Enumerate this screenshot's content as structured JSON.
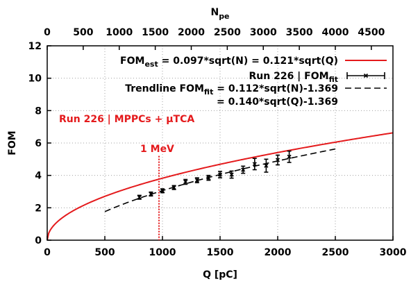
{
  "chart_data": {
    "type": "line",
    "x_label": "Q [pC]",
    "x2_label": "N",
    "x2_label_sub": "pe",
    "y_label": "FOM",
    "x_range": [
      0,
      3000
    ],
    "x2_range": [
      0,
      4800
    ],
    "y_range": [
      0,
      12
    ],
    "x_ticks": [
      0,
      500,
      1000,
      1500,
      2000,
      2500,
      3000
    ],
    "x2_ticks": [
      0,
      500,
      1000,
      1500,
      2000,
      2500,
      3000,
      3500,
      4000,
      4500
    ],
    "y_ticks": [
      0,
      2,
      4,
      6,
      8,
      10,
      12
    ],
    "grid": true,
    "legend_position": "top-right",
    "colors": {
      "est": "#e41a1c",
      "annotation": "#e41a1c",
      "data": "#000000",
      "grid": "#a0a0a0"
    },
    "legend": {
      "est": {
        "pre": "FOM",
        "sub": "est",
        "post": " = 0.097*sqrt(N) = 0.121*sqrt(Q)"
      },
      "data": {
        "pre": "Run 226 | FOM",
        "sub": "fit"
      },
      "trend_line1": {
        "pre": "Trendline FOM",
        "sub": "fit",
        "post": " = 0.112*sqrt(N)-1.369"
      },
      "trend_line2": "= 0.140*sqrt(Q)-1.369"
    },
    "annotations": {
      "run_label": "Run 226 | MPPCs + µTCA",
      "mev_label": "1 MeV",
      "mev_q": 970
    },
    "series": [
      {
        "name": "FOM_est",
        "coef": 0.121,
        "offset": 0,
        "x_start": 0,
        "x_end": 3000,
        "style": "solid"
      },
      {
        "name": "Trendline",
        "coef": 0.14,
        "offset": -1.369,
        "x_start": 500,
        "x_end": 2500,
        "style": "dashed"
      },
      {
        "name": "Run 226 | FOM_fit",
        "style": "errorbars",
        "x": [
          800,
          900,
          1000,
          1100,
          1200,
          1300,
          1400,
          1500,
          1600,
          1700,
          1800,
          1900,
          2000,
          2100
        ],
        "y": [
          2.65,
          2.85,
          3.05,
          3.25,
          3.6,
          3.7,
          3.85,
          4.05,
          4.05,
          4.35,
          4.7,
          4.6,
          4.95,
          5.15
        ],
        "y_err": [
          0.12,
          0.12,
          0.12,
          0.12,
          0.15,
          0.15,
          0.15,
          0.2,
          0.22,
          0.22,
          0.35,
          0.4,
          0.3,
          0.35
        ]
      }
    ]
  }
}
